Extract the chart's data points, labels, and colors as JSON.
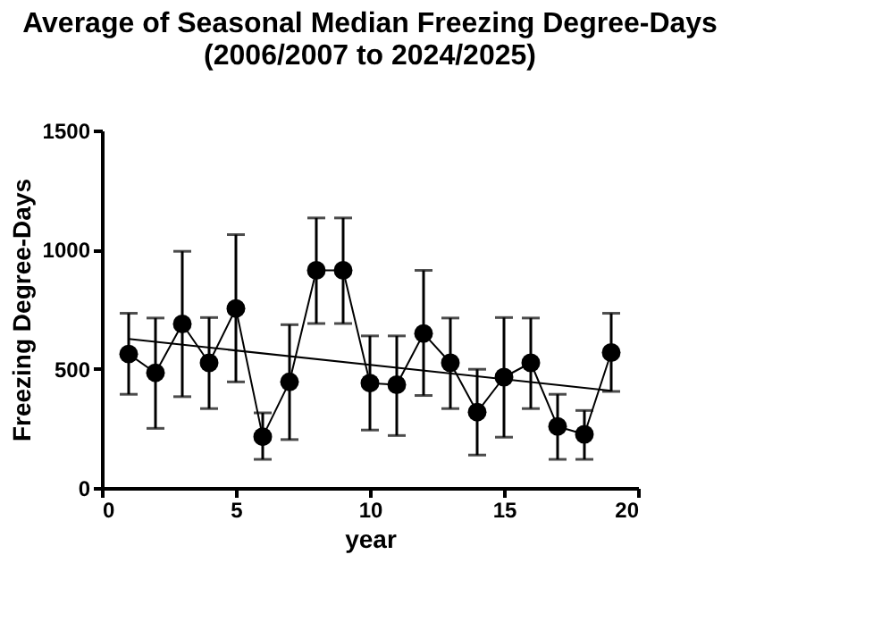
{
  "chart_data": {
    "type": "line",
    "title": "Average of Seasonal Median Freezing Degree-Days\n(2006/2007 to 2024/2025)",
    "xlabel": "year",
    "ylabel": "Freezing Degree-Days",
    "xlim": [
      0,
      20
    ],
    "xticks": [
      0,
      5,
      10,
      15,
      20
    ],
    "ylim": [
      0,
      1500
    ],
    "yticks": [
      0,
      500,
      1000,
      1500
    ],
    "grid": false,
    "marker": "circle",
    "line_style": "solid",
    "series": [
      {
        "color": "#000000",
        "x": [
          1,
          2,
          3,
          4,
          5,
          6,
          7,
          8,
          9,
          10,
          11,
          12,
          13,
          14,
          15,
          16,
          17,
          18,
          19
        ],
        "values": [
          562,
          483,
          688,
          525,
          753,
          215,
          445,
          913,
          913,
          440,
          433,
          648,
          525,
          318,
          465,
          525,
          258,
          225,
          568
        ],
        "errors": [
          [
            393,
            733
          ],
          [
            250,
            713
          ],
          [
            383,
            993
          ],
          [
            333,
            715
          ],
          [
            445,
            1063
          ],
          [
            120,
            315
          ],
          [
            203,
            685
          ],
          [
            690,
            1133
          ],
          [
            690,
            1133
          ],
          [
            243,
            638
          ],
          [
            220,
            638
          ],
          [
            388,
            913
          ],
          [
            333,
            713
          ],
          [
            138,
            498
          ],
          [
            213,
            715
          ],
          [
            333,
            713
          ],
          [
            120,
            393
          ],
          [
            120,
            325
          ],
          [
            405,
            733
          ]
        ]
      },
      {
        "color": "#000000",
        "x": [
          1,
          19
        ],
        "values": [
          625,
          408
        ],
        "marker": "none"
      }
    ]
  }
}
